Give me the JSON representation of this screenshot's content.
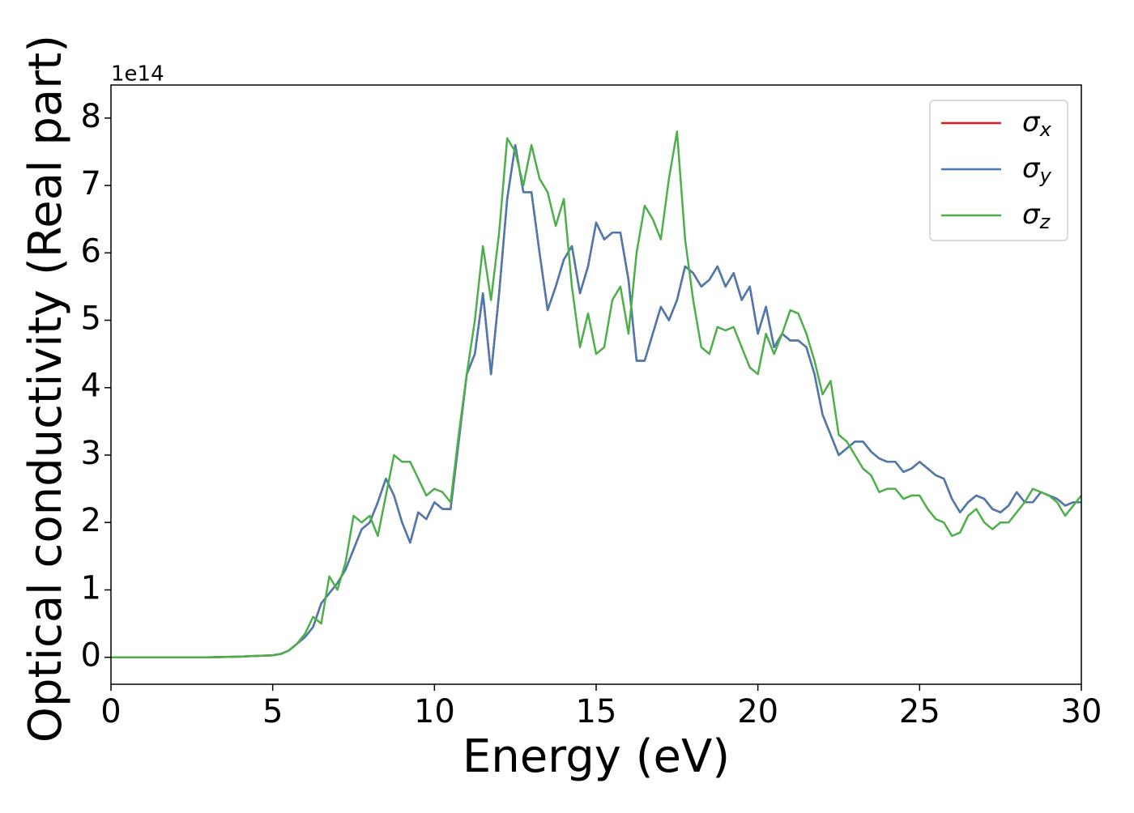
{
  "chart_data": {
    "type": "line",
    "x_label": "Energy (eV)",
    "y_label": "Optical conductivity (Real part)",
    "y_offset_label": "1e14",
    "x": [
      0,
      1,
      2,
      3,
      4,
      4.5,
      5,
      5.25,
      5.5,
      5.75,
      6,
      6.25,
      6.5,
      6.75,
      7,
      7.25,
      7.5,
      7.75,
      8,
      8.25,
      8.5,
      8.75,
      9,
      9.25,
      9.5,
      9.75,
      10,
      10.25,
      10.5,
      10.75,
      11,
      11.25,
      11.5,
      11.75,
      12,
      12.25,
      12.5,
      12.75,
      13,
      13.25,
      13.5,
      13.75,
      14,
      14.25,
      14.5,
      14.75,
      15,
      15.25,
      15.5,
      15.75,
      16,
      16.25,
      16.5,
      16.75,
      17,
      17.25,
      17.5,
      17.75,
      18,
      18.25,
      18.5,
      18.75,
      19,
      19.25,
      19.5,
      19.75,
      20,
      20.25,
      20.5,
      20.75,
      21,
      21.25,
      21.5,
      21.75,
      22,
      22.25,
      22.5,
      22.75,
      23,
      23.25,
      23.5,
      23.75,
      24,
      24.25,
      24.5,
      24.75,
      25,
      25.25,
      25.5,
      25.75,
      26,
      26.25,
      26.5,
      26.75,
      27,
      27.25,
      27.5,
      27.75,
      28,
      28.25,
      28.5,
      28.75,
      29,
      29.25,
      29.5,
      29.75,
      30
    ],
    "series": [
      {
        "name": "σ_x",
        "color": "#e41a1c",
        "values": [
          0,
          0,
          0,
          0,
          0.01,
          0.02,
          0.03,
          0.05,
          0.1,
          0.2,
          0.3,
          0.45,
          0.8,
          0.95,
          1.1,
          1.3,
          1.6,
          1.9,
          2.0,
          2.3,
          2.65,
          2.4,
          2.0,
          1.7,
          2.15,
          2.05,
          2.3,
          2.2,
          2.2,
          3.2,
          4.2,
          4.5,
          5.4,
          4.2,
          5.4,
          6.8,
          7.6,
          6.9,
          6.9,
          6.0,
          5.15,
          5.5,
          5.9,
          6.1,
          5.4,
          5.8,
          6.45,
          6.2,
          6.3,
          6.3,
          5.6,
          4.4,
          4.4,
          4.8,
          5.2,
          5.0,
          5.3,
          5.8,
          5.7,
          5.5,
          5.6,
          5.8,
          5.5,
          5.7,
          5.3,
          5.5,
          4.8,
          5.2,
          4.6,
          4.8,
          4.7,
          4.7,
          4.6,
          4.2,
          3.6,
          3.3,
          3.0,
          3.1,
          3.2,
          3.2,
          3.05,
          2.95,
          2.9,
          2.9,
          2.75,
          2.8,
          2.9,
          2.8,
          2.7,
          2.65,
          2.35,
          2.15,
          2.3,
          2.4,
          2.35,
          2.2,
          2.15,
          2.25,
          2.45,
          2.3,
          2.3,
          2.45,
          2.4,
          2.35,
          2.25,
          2.3,
          2.3
        ]
      },
      {
        "name": "σ_y",
        "color": "#4a7bb0",
        "values": [
          0,
          0,
          0,
          0,
          0.01,
          0.02,
          0.03,
          0.05,
          0.1,
          0.2,
          0.3,
          0.45,
          0.8,
          0.95,
          1.1,
          1.3,
          1.6,
          1.9,
          2.0,
          2.3,
          2.65,
          2.4,
          2.0,
          1.7,
          2.15,
          2.05,
          2.3,
          2.2,
          2.2,
          3.2,
          4.2,
          4.5,
          5.4,
          4.2,
          5.4,
          6.8,
          7.6,
          6.9,
          6.9,
          6.0,
          5.15,
          5.5,
          5.9,
          6.1,
          5.4,
          5.8,
          6.45,
          6.2,
          6.3,
          6.3,
          5.6,
          4.4,
          4.4,
          4.8,
          5.2,
          5.0,
          5.3,
          5.8,
          5.7,
          5.5,
          5.6,
          5.8,
          5.5,
          5.7,
          5.3,
          5.5,
          4.8,
          5.2,
          4.6,
          4.8,
          4.7,
          4.7,
          4.6,
          4.2,
          3.6,
          3.3,
          3.0,
          3.1,
          3.2,
          3.2,
          3.05,
          2.95,
          2.9,
          2.9,
          2.75,
          2.8,
          2.9,
          2.8,
          2.7,
          2.65,
          2.35,
          2.15,
          2.3,
          2.4,
          2.35,
          2.2,
          2.15,
          2.25,
          2.45,
          2.3,
          2.3,
          2.45,
          2.4,
          2.35,
          2.25,
          2.3,
          2.3
        ]
      },
      {
        "name": "σ_z",
        "color": "#4daf4a",
        "values": [
          0,
          0,
          0,
          0,
          0.01,
          0.02,
          0.03,
          0.05,
          0.1,
          0.2,
          0.35,
          0.6,
          0.5,
          1.2,
          1.0,
          1.4,
          2.1,
          2.0,
          2.1,
          1.8,
          2.4,
          3.0,
          2.9,
          2.9,
          2.65,
          2.4,
          2.5,
          2.45,
          2.3,
          3.3,
          4.2,
          5.0,
          6.1,
          5.3,
          6.3,
          7.7,
          7.5,
          7.0,
          7.6,
          7.1,
          6.9,
          6.4,
          6.8,
          5.5,
          4.6,
          5.1,
          4.5,
          4.6,
          5.3,
          5.5,
          4.8,
          6.0,
          6.7,
          6.5,
          6.2,
          7.1,
          7.8,
          6.2,
          5.3,
          4.6,
          4.5,
          4.9,
          4.85,
          4.9,
          4.6,
          4.3,
          4.2,
          4.8,
          4.5,
          4.8,
          5.15,
          5.1,
          4.8,
          4.4,
          3.9,
          4.1,
          3.3,
          3.2,
          3.0,
          2.8,
          2.7,
          2.45,
          2.5,
          2.5,
          2.35,
          2.4,
          2.4,
          2.2,
          2.05,
          2.0,
          1.8,
          1.85,
          2.1,
          2.2,
          2.0,
          1.9,
          2.0,
          2.0,
          2.15,
          2.3,
          2.5,
          2.45,
          2.4,
          2.3,
          2.1,
          2.25,
          2.4
        ]
      }
    ],
    "xlim": [
      0,
      30
    ],
    "xticks": [
      0,
      5,
      10,
      15,
      20,
      25,
      30
    ],
    "ylim": [
      -0.4,
      8.49
    ],
    "yticks": [
      0,
      1,
      2,
      3,
      4,
      5,
      6,
      7,
      8
    ],
    "legend": "upper right",
    "grid": false
  }
}
